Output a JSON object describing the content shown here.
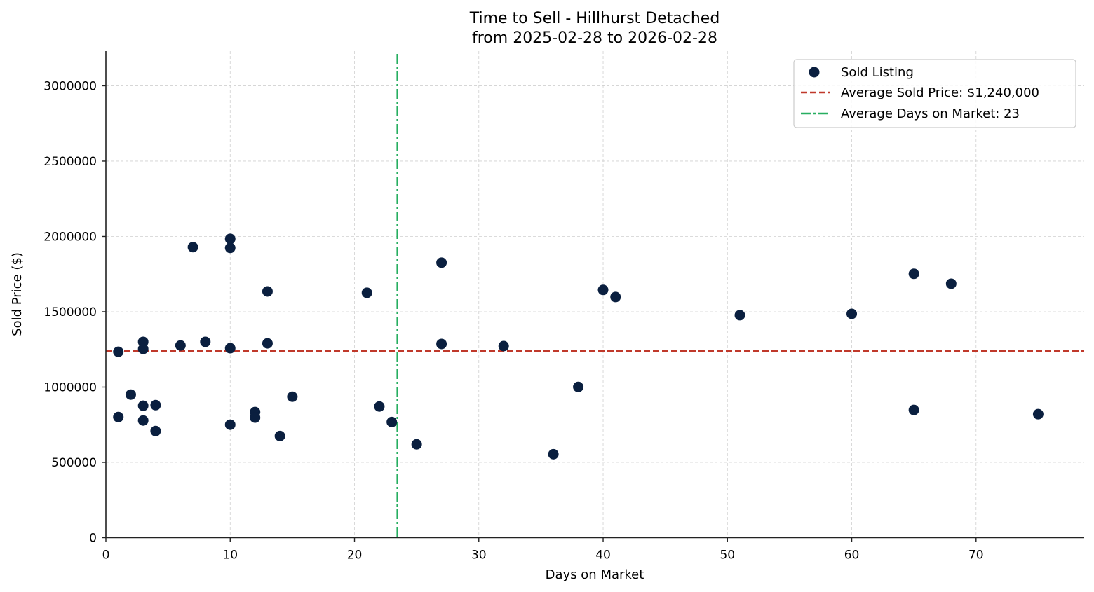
{
  "chart_data": {
    "type": "scatter",
    "title": "Time to Sell - Hillhurst Detached",
    "subtitle": "from 2025-02-28 to 2026-02-28",
    "xlabel": "Days on Market",
    "ylabel": "Sold Price ($)",
    "xlim": [
      0,
      78.7
    ],
    "ylim": [
      0,
      3230000
    ],
    "xticks": [
      0,
      10,
      20,
      30,
      40,
      50,
      60,
      70
    ],
    "yticks": [
      0,
      500000,
      1000000,
      1500000,
      2000000,
      2500000,
      3000000
    ],
    "xtick_labels": [
      "0",
      "10",
      "20",
      "30",
      "40",
      "50",
      "60",
      "70"
    ],
    "ytick_labels": [
      "0",
      "500000",
      "1000000",
      "1500000",
      "2000000",
      "2500000",
      "3000000"
    ],
    "grid": true,
    "legend_position": "upper right",
    "legend": [
      {
        "label": "Sold Listing",
        "type": "marker",
        "color": "#0a1f3f"
      },
      {
        "label": "Average Sold Price: $1,240,000",
        "type": "dashed",
        "color": "#c0392b"
      },
      {
        "label": "Average Days on Market: 23",
        "type": "dashdot",
        "color": "#27ae60"
      }
    ],
    "reference_lines": {
      "avg_price": {
        "value": 1240000,
        "orientation": "horizontal",
        "color": "#c0392b",
        "style": "dashed"
      },
      "avg_days": {
        "value": 23.45,
        "orientation": "vertical",
        "color": "#27ae60",
        "style": "dashdot"
      }
    },
    "series": [
      {
        "name": "Sold Listing",
        "color": "#0a1f3f",
        "points": [
          {
            "x": 1,
            "y": 1234000
          },
          {
            "x": 1,
            "y": 801000
          },
          {
            "x": 2,
            "y": 950000
          },
          {
            "x": 3,
            "y": 1300000
          },
          {
            "x": 3,
            "y": 1253000
          },
          {
            "x": 3,
            "y": 876000
          },
          {
            "x": 3,
            "y": 778000
          },
          {
            "x": 4,
            "y": 880000
          },
          {
            "x": 4,
            "y": 708000
          },
          {
            "x": 6,
            "y": 1276000
          },
          {
            "x": 7,
            "y": 1929000
          },
          {
            "x": 8,
            "y": 1300000
          },
          {
            "x": 10,
            "y": 1984000
          },
          {
            "x": 10,
            "y": 1924000
          },
          {
            "x": 10,
            "y": 1258000
          },
          {
            "x": 10,
            "y": 750000
          },
          {
            "x": 12,
            "y": 834000
          },
          {
            "x": 12,
            "y": 797000
          },
          {
            "x": 13,
            "y": 1635000
          },
          {
            "x": 13,
            "y": 1290000
          },
          {
            "x": 14,
            "y": 675000
          },
          {
            "x": 15,
            "y": 936000
          },
          {
            "x": 21,
            "y": 1626000
          },
          {
            "x": 22,
            "y": 871000
          },
          {
            "x": 23,
            "y": 768000
          },
          {
            "x": 25,
            "y": 620000
          },
          {
            "x": 27,
            "y": 1826000
          },
          {
            "x": 27,
            "y": 1286000
          },
          {
            "x": 32,
            "y": 1272000
          },
          {
            "x": 36,
            "y": 554000
          },
          {
            "x": 38,
            "y": 1001000
          },
          {
            "x": 40,
            "y": 1645000
          },
          {
            "x": 41,
            "y": 1598000
          },
          {
            "x": 51,
            "y": 1477000
          },
          {
            "x": 60,
            "y": 1486000
          },
          {
            "x": 65,
            "y": 1752000
          },
          {
            "x": 65,
            "y": 848000
          },
          {
            "x": 68,
            "y": 1686000
          },
          {
            "x": 75,
            "y": 820000
          }
        ]
      }
    ]
  }
}
